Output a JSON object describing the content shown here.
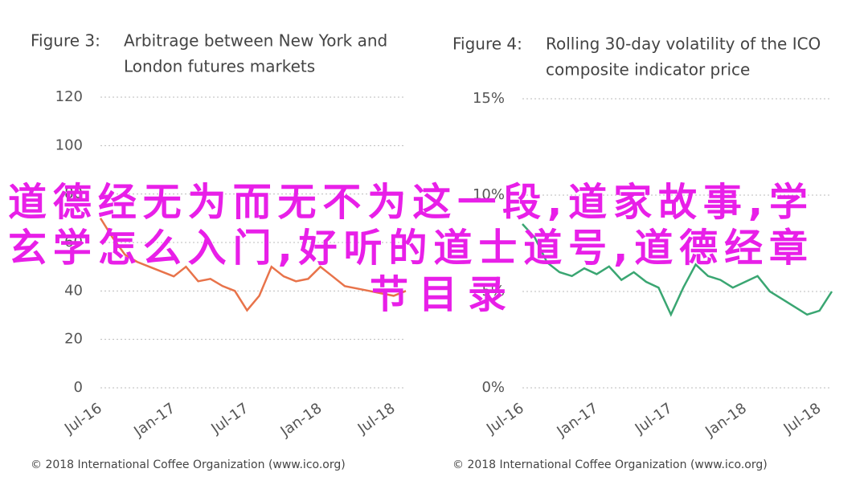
{
  "chart_data": [
    {
      "type": "line",
      "figure_label": "Figure 3:",
      "title": [
        "Arbitrage between New York and",
        "London futures markets"
      ],
      "categories": [
        "Jul-16",
        null,
        null,
        null,
        null,
        null,
        "Jan-17",
        null,
        null,
        null,
        null,
        null,
        "Jul-17",
        null,
        null,
        null,
        null,
        null,
        "Jan-18",
        null,
        null,
        null,
        null,
        null,
        "Jul-18",
        null
      ],
      "series": [
        {
          "color": "#e8734a",
          "values": [
            70,
            62,
            55,
            52,
            50,
            48,
            46,
            50,
            44,
            45,
            42,
            40,
            32,
            38,
            50,
            46,
            44,
            45,
            50,
            46,
            42,
            41,
            40,
            39,
            38,
            40
          ]
        }
      ],
      "ylim": [
        0,
        120
      ],
      "yticks": [
        0,
        20,
        40,
        60,
        80,
        100,
        120
      ],
      "grid": true,
      "source": "© 2018 International Coffee Organization (www.ico.org)"
    },
    {
      "type": "line",
      "figure_label": "Figure 4:",
      "title": [
        "Rolling 30-day volatility of the ICO",
        "composite indicator price"
      ],
      "categories": [
        "Jul-16",
        null,
        null,
        null,
        null,
        null,
        "Jan-17",
        null,
        null,
        null,
        null,
        null,
        "Jul-17",
        null,
        null,
        null,
        null,
        null,
        "Jan-18",
        null,
        null,
        null,
        null,
        null,
        "Jul-18",
        null
      ],
      "series": [
        {
          "color": "#3aa672",
          "values": [
            8.5,
            7.8,
            6.5,
            6,
            5.8,
            6.2,
            5.9,
            6.3,
            5.6,
            6,
            5.5,
            5.2,
            3.8,
            5.2,
            6.4,
            5.8,
            5.6,
            5.2,
            5.5,
            5.8,
            5,
            4.6,
            4.2,
            3.8,
            4,
            5
          ]
        }
      ],
      "ylim": [
        0,
        15
      ],
      "yticks": [
        {
          "value": 0,
          "label": "0%"
        },
        {
          "value": 5,
          "label": "5%"
        },
        {
          "value": 10,
          "label": "10%"
        },
        {
          "value": 15,
          "label": "15%"
        }
      ],
      "grid": true,
      "source": "© 2018 International Coffee Organization (www.ico.org)"
    }
  ],
  "overlay": {
    "lines": [
      "道德经无为而无不为这一段,道家故事,学",
      "玄学怎么入门,好听的道士道号,道德经章",
      "节目录"
    ]
  }
}
